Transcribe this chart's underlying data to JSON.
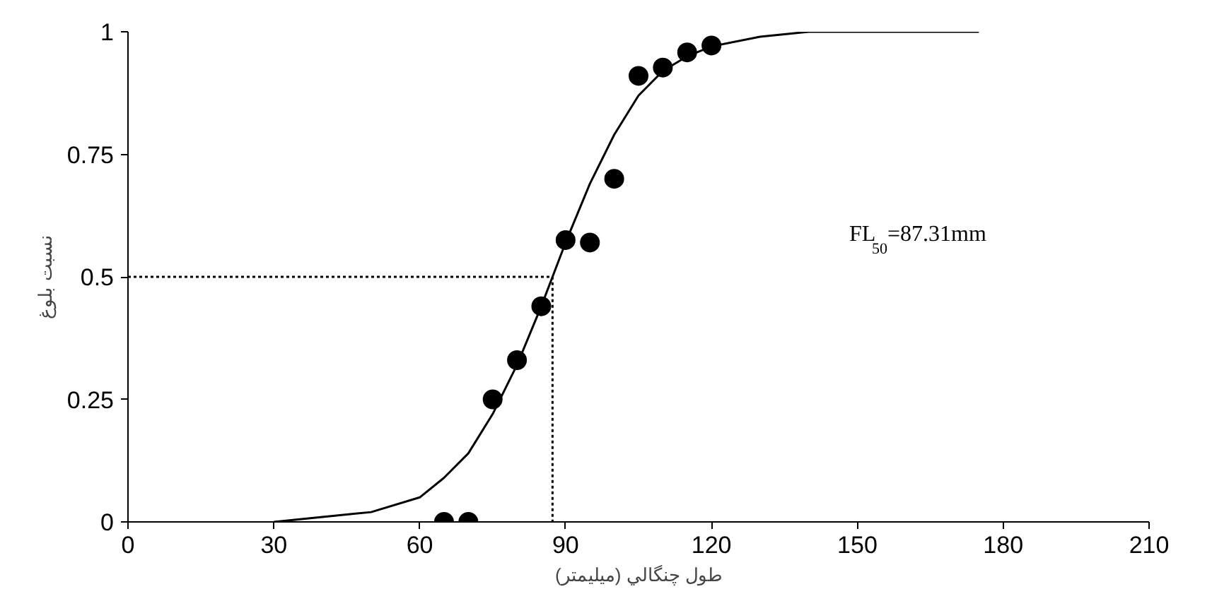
{
  "chart_data": {
    "type": "scatter",
    "xlabel": "طول چنگالي (ميليمتر)",
    "ylabel": "نسبت بلوغ",
    "xlim": [
      0,
      210
    ],
    "xticks": [
      0,
      30,
      60,
      90,
      120,
      150,
      180,
      210
    ],
    "ylim": [
      0,
      1
    ],
    "yticks": [
      0,
      0.25,
      0.5,
      0.75,
      1
    ],
    "grid": false,
    "marker": "circle",
    "series": [
      {
        "color": "#000000",
        "x": [
          65,
          70,
          75,
          80,
          85,
          90,
          95,
          100,
          105,
          110,
          115,
          120
        ],
        "values": [
          0,
          0,
          0.25,
          0.33,
          0.44,
          0.575,
          0.57,
          0.7,
          0.91,
          0.927,
          0.958,
          0.972
        ]
      },
      {
        "type": "line",
        "color": "#000000",
        "line_style": "solid",
        "marker": "none",
        "x": [
          30,
          40,
          50,
          60,
          65,
          70,
          75,
          80,
          85,
          87.31,
          90,
          95,
          100,
          105,
          110,
          115,
          120,
          130,
          140,
          150,
          160,
          175
        ],
        "values": [
          0,
          0.01,
          0.02,
          0.05,
          0.09,
          0.14,
          0.22,
          0.32,
          0.44,
          0.5,
          0.57,
          0.69,
          0.79,
          0.87,
          0.92,
          0.95,
          0.97,
          0.99,
          1,
          1,
          1,
          1
        ]
      },
      {
        "type": "line",
        "color": "#000000",
        "line_style": "dotted",
        "marker": "none",
        "x": [
          0,
          87.31,
          87.31
        ],
        "values": [
          0.5,
          0.5,
          0
        ]
      }
    ],
    "annotations": [
      "FL$_{50}$=87.31mm"
    ]
  }
}
